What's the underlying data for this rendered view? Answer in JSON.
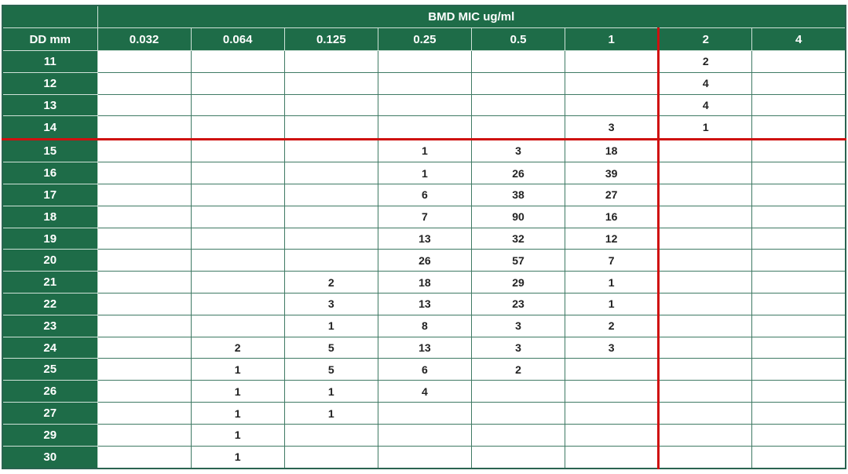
{
  "chart_data": {
    "type": "table",
    "title": "BMD MIC ug/ml",
    "row_label": "DD mm",
    "columns": [
      "0.032",
      "0.064",
      "0.125",
      "0.25",
      "0.5",
      "1",
      "2",
      "4"
    ],
    "rows": [
      {
        "dd": "11",
        "values": [
          "",
          "",
          "",
          "",
          "",
          "",
          "2",
          ""
        ]
      },
      {
        "dd": "12",
        "values": [
          "",
          "",
          "",
          "",
          "",
          "",
          "4",
          ""
        ]
      },
      {
        "dd": "13",
        "values": [
          "",
          "",
          "",
          "",
          "",
          "",
          "4",
          ""
        ]
      },
      {
        "dd": "14",
        "values": [
          "",
          "",
          "",
          "",
          "",
          "3",
          "1",
          ""
        ]
      },
      {
        "dd": "15",
        "values": [
          "",
          "",
          "",
          "1",
          "3",
          "18",
          "",
          ""
        ]
      },
      {
        "dd": "16",
        "values": [
          "",
          "",
          "",
          "1",
          "26",
          "39",
          "",
          ""
        ]
      },
      {
        "dd": "17",
        "values": [
          "",
          "",
          "",
          "6",
          "38",
          "27",
          "",
          ""
        ]
      },
      {
        "dd": "18",
        "values": [
          "",
          "",
          "",
          "7",
          "90",
          "16",
          "",
          ""
        ]
      },
      {
        "dd": "19",
        "values": [
          "",
          "",
          "",
          "13",
          "32",
          "12",
          "",
          ""
        ]
      },
      {
        "dd": "20",
        "values": [
          "",
          "",
          "",
          "26",
          "57",
          "7",
          "",
          ""
        ]
      },
      {
        "dd": "21",
        "values": [
          "",
          "",
          "2",
          "18",
          "29",
          "1",
          "",
          ""
        ]
      },
      {
        "dd": "22",
        "values": [
          "",
          "",
          "3",
          "13",
          "23",
          "1",
          "",
          ""
        ]
      },
      {
        "dd": "23",
        "values": [
          "",
          "",
          "1",
          "8",
          "3",
          "2",
          "",
          ""
        ]
      },
      {
        "dd": "24",
        "values": [
          "",
          "2",
          "5",
          "13",
          "3",
          "3",
          "",
          ""
        ]
      },
      {
        "dd": "25",
        "values": [
          "",
          "1",
          "5",
          "6",
          "2",
          "",
          "",
          ""
        ]
      },
      {
        "dd": "26",
        "values": [
          "",
          "1",
          "1",
          "4",
          "",
          "",
          "",
          ""
        ]
      },
      {
        "dd": "27",
        "values": [
          "",
          "1",
          "1",
          "",
          "",
          "",
          "",
          ""
        ]
      },
      {
        "dd": "29",
        "values": [
          "",
          "1",
          "",
          "",
          "",
          "",
          "",
          ""
        ]
      },
      {
        "dd": "30",
        "values": [
          "",
          "1",
          "",
          "",
          "",
          "",
          "",
          ""
        ]
      }
    ],
    "red_reference_lines": {
      "vertical_left_of_column": "2",
      "horizontal_below_row": "14"
    },
    "layout_hints": {
      "header_background": "#1e6c48",
      "header_text_color": "#ffffff",
      "grid_line_color": "#3f7a64",
      "red_line_color": "#cf1110",
      "cell_text_color": "#222222"
    }
  }
}
